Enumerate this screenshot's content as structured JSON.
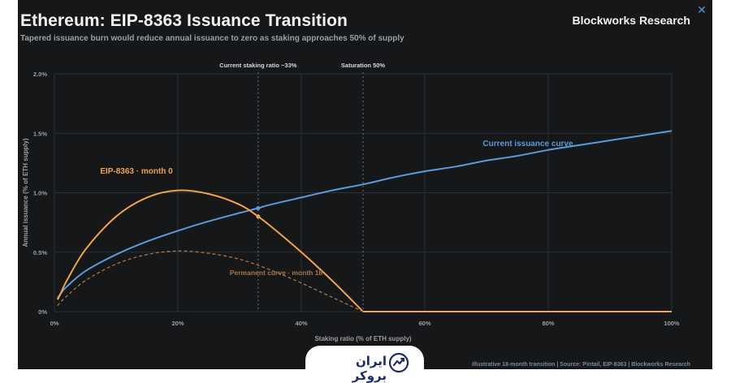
{
  "header": {
    "title": "Ethereum: EIP-8363 Issuance Transition",
    "subtitle": "Tapered issuance burn would reduce annual issuance to zero as staking approaches 50% of supply",
    "brand": "Blockworks Research"
  },
  "close_icon_glyph": "✕",
  "footer": {
    "source": "Illustrative 18-month transition | Source: Pintail, EIP-8363 | Blockworks Research"
  },
  "watermark": {
    "text": "ایران بروکر",
    "icon": "trend-chart-icon"
  },
  "colors": {
    "background": "#151719",
    "current_curve": "#5b9bd8",
    "eip_curve": "#f0a34a",
    "permanent_curve": "#a8764a",
    "grid": "#2c3136",
    "text_muted": "#9aa0a6"
  },
  "chart_data": {
    "type": "line",
    "xlabel": "Staking ratio (% of ETH supply)",
    "ylabel": "Annual issuance (% of ETH supply)",
    "xlim": [
      0,
      100
    ],
    "ylim": [
      0,
      2
    ],
    "xticks": [
      "0%",
      "20%",
      "40%",
      "60%",
      "80%",
      "100%"
    ],
    "yticks": [
      "0%",
      "0.5%",
      "1.0%",
      "1.5%",
      "2.0%"
    ],
    "grid": true,
    "series": [
      {
        "name": "Current issuance curve",
        "style": "solid",
        "x": [
          0.5,
          1,
          2,
          5,
          10,
          15,
          20,
          25,
          30,
          33,
          35,
          40,
          45,
          50,
          55,
          60,
          65,
          70,
          75,
          80,
          85,
          90,
          95,
          100
        ],
        "y": [
          0.11,
          0.15,
          0.21,
          0.34,
          0.48,
          0.59,
          0.68,
          0.76,
          0.83,
          0.87,
          0.9,
          0.96,
          1.02,
          1.07,
          1.13,
          1.18,
          1.22,
          1.27,
          1.31,
          1.36,
          1.4,
          1.44,
          1.48,
          1.52
        ]
      },
      {
        "name": "EIP-8363 · month 0",
        "style": "solid",
        "x": [
          0.5,
          1,
          2,
          5,
          10,
          15,
          20,
          25,
          30,
          33,
          35,
          40,
          45,
          50,
          55,
          60,
          70,
          80,
          90,
          100
        ],
        "y": [
          0.1,
          0.15,
          0.26,
          0.52,
          0.8,
          0.96,
          1.02,
          0.99,
          0.9,
          0.8,
          0.72,
          0.5,
          0.26,
          0.0,
          0.0,
          0.0,
          0.0,
          0.0,
          0.0,
          0.0
        ]
      },
      {
        "name": "Permanent curve · month 18",
        "style": "dashed",
        "x": [
          0.5,
          1,
          2,
          5,
          10,
          15,
          20,
          25,
          30,
          35,
          40,
          45,
          50
        ],
        "y": [
          0.05,
          0.08,
          0.13,
          0.26,
          0.4,
          0.48,
          0.51,
          0.49,
          0.44,
          0.35,
          0.24,
          0.12,
          0.0
        ]
      }
    ],
    "annotations": [
      {
        "text": "Current staking ratio ~33%",
        "x": 33
      },
      {
        "text": "Saturation 50%",
        "x": 50
      }
    ],
    "markers": [
      {
        "series": "Current issuance curve",
        "x": 33,
        "y": 0.87
      },
      {
        "series": "EIP-8363 · month 0",
        "x": 33,
        "y": 0.8
      }
    ]
  }
}
